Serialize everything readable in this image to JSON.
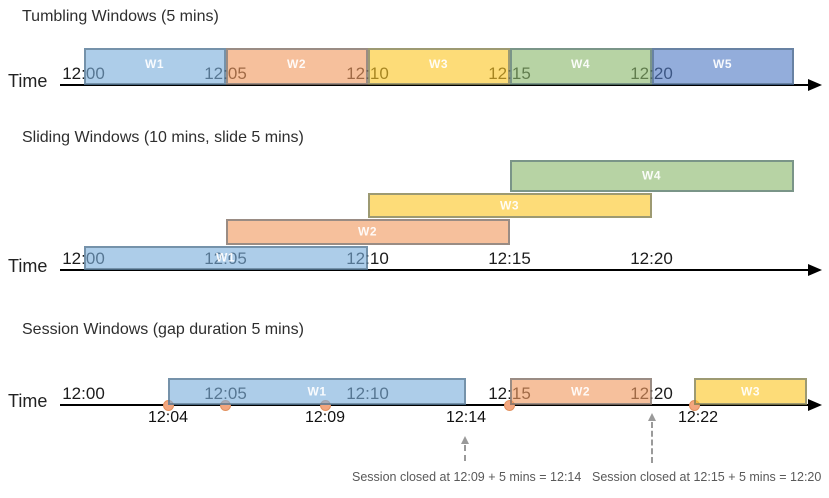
{
  "palette": {
    "blue": "rgba(123,174,220,0.62)",
    "orange": "rgba(240,153,95,0.62)",
    "yellow": "rgba(252,198,37,0.62)",
    "green": "rgba(139,184,108,0.62)",
    "darkblue": "rgba(81,123,197,0.62)",
    "box_border": "rgba(62,88,108,0.5)",
    "dot_fill": "#F3A67F",
    "dot_border": "#E2915F",
    "axis_color": "#000000",
    "annotation_gray": "#595959",
    "arrow_gray": "#9A9A9A"
  },
  "sections": [
    {
      "id": "tumbling",
      "title": "Tumbling Windows (5 mins)",
      "time_label": "Time",
      "axis_ticks": [
        "12:00",
        "12:05",
        "12:10",
        "12:15",
        "12:20"
      ],
      "windows": [
        {
          "label": "W1",
          "color": "blue",
          "start": "12:00",
          "end": "12:05"
        },
        {
          "label": "W2",
          "color": "orange",
          "start": "12:05",
          "end": "12:10"
        },
        {
          "label": "W3",
          "color": "yellow",
          "start": "12:10",
          "end": "12:15"
        },
        {
          "label": "W4",
          "color": "green",
          "start": "12:15",
          "end": "12:20"
        },
        {
          "label": "W5",
          "color": "darkblue",
          "start": "12:20",
          "end": "12:25"
        }
      ]
    },
    {
      "id": "sliding",
      "title": "Sliding Windows (10 mins, slide 5 mins)",
      "time_label": "Time",
      "axis_ticks": [
        "12:00",
        "12:05",
        "12:10",
        "12:15",
        "12:20"
      ],
      "windows": [
        {
          "label": "W1",
          "color": "blue",
          "start": "12:00",
          "end": "12:10",
          "row": 0
        },
        {
          "label": "W2",
          "color": "orange",
          "start": "12:05",
          "end": "12:15",
          "row": 1
        },
        {
          "label": "W3",
          "color": "yellow",
          "start": "12:10",
          "end": "12:20",
          "row": 2
        },
        {
          "label": "W4",
          "color": "green",
          "start": "12:15",
          "end": "12:25",
          "row": 3
        }
      ]
    },
    {
      "id": "session",
      "title": "Session Windows (gap duration 5 mins)",
      "time_label": "Time",
      "axis_ticks": [
        "12:00",
        "12:05",
        "12:10",
        "12:15",
        "12:20"
      ],
      "windows": [
        {
          "label": "W1",
          "color": "blue",
          "start": "12:04",
          "end": "12:14"
        },
        {
          "label": "W2",
          "color": "orange",
          "start": "12:15",
          "end": "12:20"
        },
        {
          "label": "W3",
          "color": "yellow",
          "start": "12:22",
          "end": "12:26"
        }
      ],
      "events": [
        "12:04",
        "12:05",
        "12:09",
        "12:15",
        "12:22"
      ],
      "event_labels": [
        "12:04",
        "12:09",
        "12:14",
        "12:22"
      ],
      "annotations": [
        {
          "text": "Session closed at 12:09 + 5 mins = 12:14",
          "arrow_time": "12:14"
        },
        {
          "text": "Session closed at 12:15 + 5 mins = 12:20",
          "arrow_time": "12:20"
        }
      ]
    }
  ]
}
